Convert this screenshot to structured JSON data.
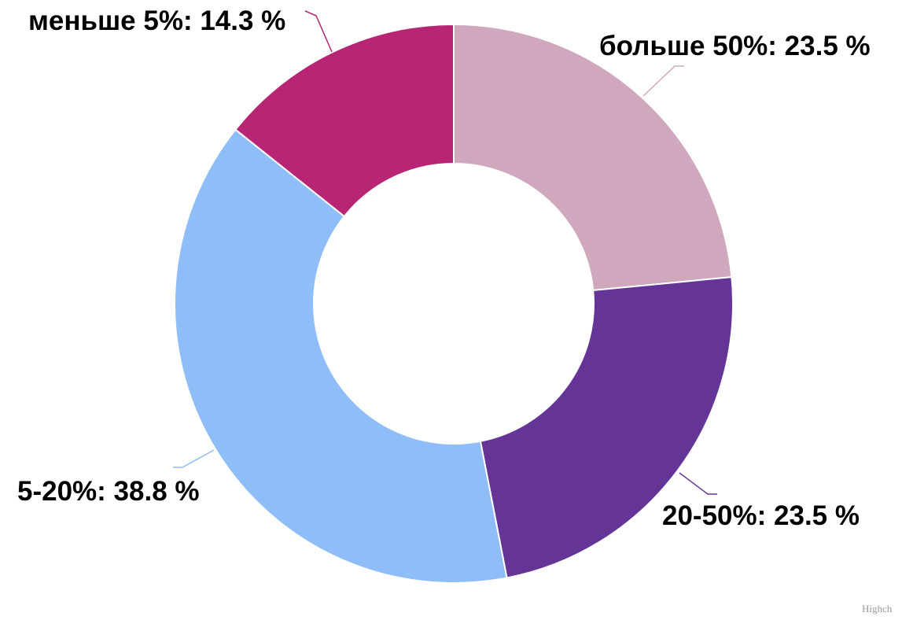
{
  "chart_data": {
    "type": "pie",
    "donut": true,
    "title": "",
    "slices": [
      {
        "name": "больше 50%",
        "value": 23.5,
        "label": "больше 50%: 23.5 %",
        "color": "#cfa8be"
      },
      {
        "name": "20-50%",
        "value": 23.5,
        "label": "20-50%: 23.5 %",
        "color": "#643597"
      },
      {
        "name": "5-20%",
        "value": 38.8,
        "label": "5-20%: 38.8 %",
        "color": "#8fbdf8"
      },
      {
        "name": "меньше 5%",
        "value": 14.3,
        "label": "меньше 5%: 14.3 %",
        "color": "#b72574"
      }
    ],
    "legend": "none"
  },
  "credits": {
    "text": "Highch"
  }
}
